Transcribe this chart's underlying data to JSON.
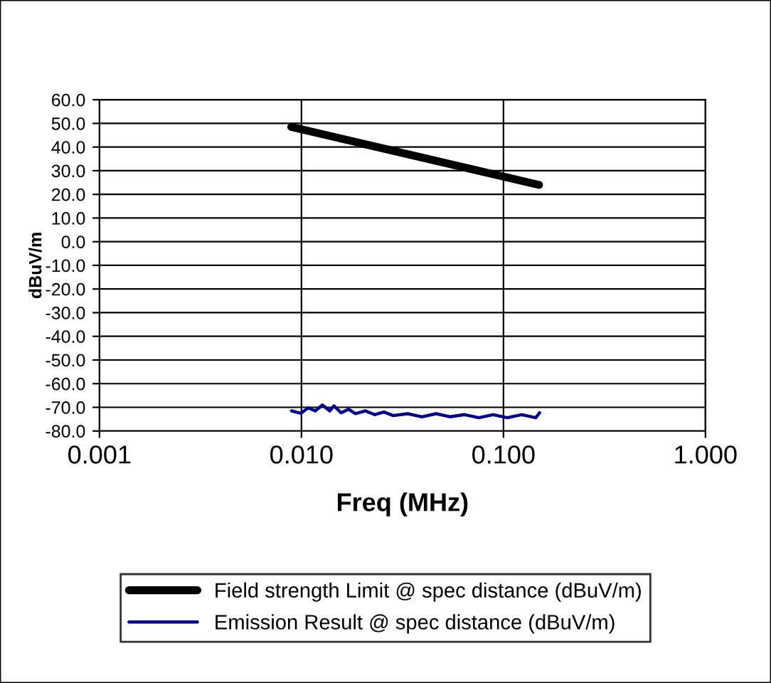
{
  "chart_data": {
    "type": "line",
    "xlabel": "Freq (MHz)",
    "ylabel": "dBuV/m",
    "log": "x",
    "grid": true,
    "legend": "bottom",
    "line_style": "solid",
    "marker": "none",
    "xlim": [
      0.001,
      1.0
    ],
    "xticks": [
      {
        "value": 0.001,
        "label": "0.001"
      },
      {
        "value": 0.01,
        "label": "0.010"
      },
      {
        "value": 0.1,
        "label": "0.100"
      },
      {
        "value": 1.0,
        "label": "1.000"
      }
    ],
    "ylim": [
      -80,
      60
    ],
    "yticks": [
      {
        "value": 60,
        "label": "60.0"
      },
      {
        "value": 50,
        "label": "50.0"
      },
      {
        "value": 40,
        "label": "40.0"
      },
      {
        "value": 30,
        "label": "30.0"
      },
      {
        "value": 20,
        "label": "20.0"
      },
      {
        "value": 10,
        "label": "10.0"
      },
      {
        "value": 0,
        "label": "0.0"
      },
      {
        "value": -10,
        "label": "-10.0"
      },
      {
        "value": -20,
        "label": "-20.0"
      },
      {
        "value": -30,
        "label": "-30.0"
      },
      {
        "value": -40,
        "label": "-40.0"
      },
      {
        "value": -50,
        "label": "-50.0"
      },
      {
        "value": -60,
        "label": "-60.0"
      },
      {
        "value": -70,
        "label": "-70.0"
      },
      {
        "value": -80,
        "label": "-80.0"
      }
    ],
    "series": [
      {
        "name": "Field strength Limit @ spec distance (dBuV/m)",
        "color": "#000000",
        "x": [
          0.0089,
          0.15
        ],
        "values": [
          48.5,
          24
        ]
      },
      {
        "name": "Emission Result @ spec distance (dBuV/m)",
        "color": "#000080",
        "x": [
          0.00893,
          0.00995,
          0.0108,
          0.0117,
          0.0127,
          0.0138,
          0.0145,
          0.0157,
          0.0171,
          0.0185,
          0.0207,
          0.023,
          0.0256,
          0.0285,
          0.0336,
          0.0395,
          0.0464,
          0.0546,
          0.0642,
          0.0755,
          0.0888,
          0.1045,
          0.123,
          0.1445,
          0.151
        ],
        "values": [
          -71.5,
          -72.5,
          -70.2,
          -71.5,
          -69,
          -71.5,
          -69.4,
          -72.3,
          -70.8,
          -72.7,
          -71.5,
          -73.1,
          -72,
          -73.5,
          -72.7,
          -74,
          -72.7,
          -74,
          -73.1,
          -74.4,
          -73.1,
          -74.4,
          -73.1,
          -74.4,
          -72.3
        ]
      }
    ]
  }
}
